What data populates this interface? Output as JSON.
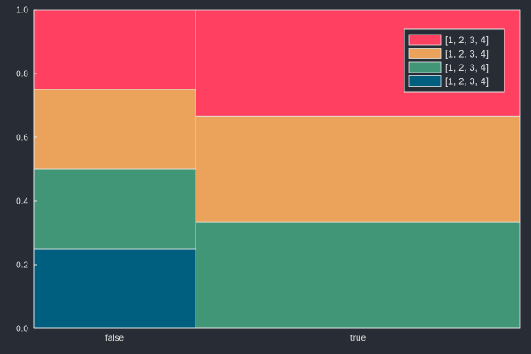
{
  "chart_data": {
    "type": "bar",
    "stacked": true,
    "variable_width": true,
    "title": "",
    "xlabel": "",
    "ylabel": "",
    "ylim": [
      0,
      1
    ],
    "yticks": [
      0.0,
      0.2,
      0.4,
      0.6,
      0.8,
      1.0
    ],
    "ytick_labels": [
      "0.0",
      "0.2",
      "0.4",
      "0.6",
      "0.8",
      "1.0"
    ],
    "categories": [
      "false",
      "true"
    ],
    "category_widths": [
      0.333,
      0.667
    ],
    "series": [
      {
        "name": "[1, 2, 3, 4]",
        "color": "#005f7f",
        "values": [
          0.25,
          0.0
        ]
      },
      {
        "name": "[1, 2, 3, 4]",
        "color": "#419677",
        "values": [
          0.25,
          0.333
        ]
      },
      {
        "name": "[1, 2, 3, 4]",
        "color": "#eba35c",
        "values": [
          0.25,
          0.333
        ]
      },
      {
        "name": "[1, 2, 3, 4]",
        "color": "#ff4060",
        "values": [
          0.25,
          0.334
        ]
      }
    ],
    "legend": {
      "position": "top-right",
      "order": "reverse"
    },
    "grid": false,
    "background_color": "#282c34",
    "foreground_color": "#e6e6e6",
    "bar_edge_color": "#e6e6e6"
  }
}
